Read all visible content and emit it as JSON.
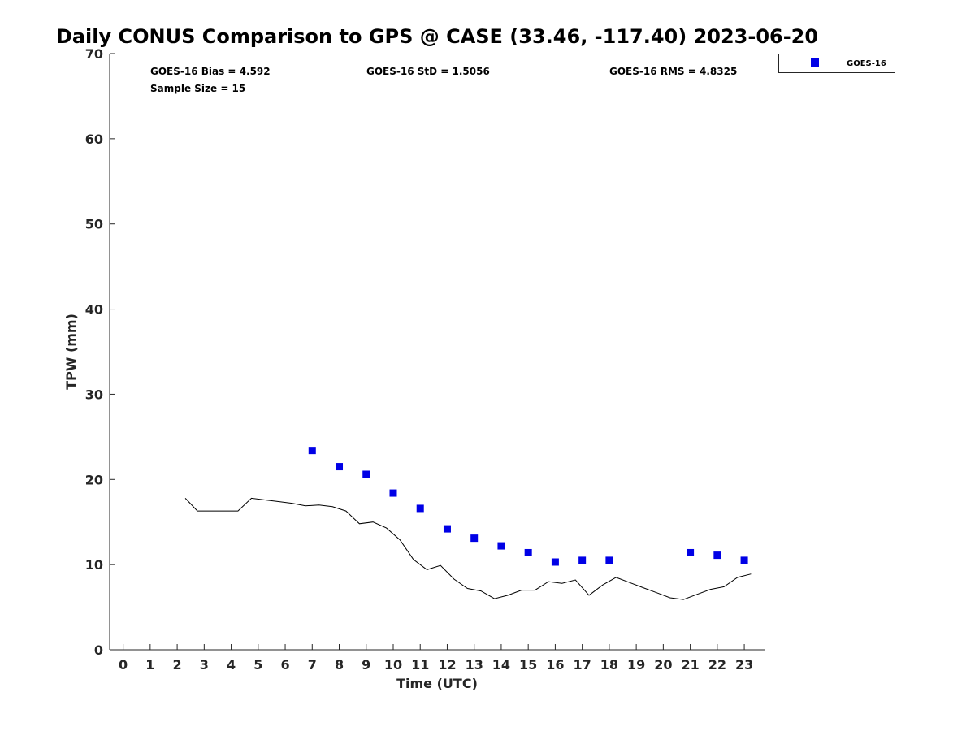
{
  "chart_data": {
    "type": "scatter",
    "title": "Daily CONUS Comparison to GPS @ CASE (33.46, -117.40) 2023-06-20",
    "xlabel": "Time (UTC)",
    "ylabel": "TPW (mm)",
    "xlim": [
      -0.5,
      23.75
    ],
    "ylim": [
      0,
      70
    ],
    "x_ticks": [
      0,
      1,
      2,
      3,
      4,
      5,
      6,
      7,
      8,
      9,
      10,
      11,
      12,
      13,
      14,
      15,
      16,
      17,
      18,
      19,
      20,
      21,
      22,
      23
    ],
    "y_ticks": [
      0,
      10,
      20,
      30,
      40,
      50,
      60,
      70
    ],
    "grid": false,
    "legend_position": "top-right, outside plot",
    "stats": {
      "bias": "GOES-16 Bias = 4.592",
      "std": "GOES-16 StD = 1.5056",
      "rms": "GOES-16 RMS = 4.8325",
      "sample": "Sample Size = 15"
    },
    "series": [
      {
        "name": "GOES-16",
        "kind": "markers",
        "marker": "square",
        "color": "#0000e6",
        "x": [
          7,
          8,
          9,
          10,
          11,
          12,
          13,
          14,
          15,
          16,
          17,
          18,
          21,
          22,
          23
        ],
        "y": [
          23.4,
          21.5,
          20.6,
          18.4,
          16.6,
          14.2,
          13.1,
          12.2,
          11.4,
          10.3,
          10.5,
          10.5,
          11.4,
          11.1,
          10.5
        ]
      },
      {
        "kind": "line",
        "color": "#000000",
        "x": [
          2.3,
          2.75,
          3.25,
          3.75,
          4.25,
          4.75,
          5.25,
          5.75,
          6.25,
          6.75,
          7.25,
          7.75,
          8.25,
          8.75,
          9.25,
          9.75,
          10.25,
          10.75,
          11.25,
          11.75,
          12.25,
          12.75,
          13.25,
          13.75,
          14.25,
          14.75,
          15.25,
          15.75,
          16.25,
          16.75,
          17.25,
          17.75,
          18.25,
          18.75,
          19.25,
          19.75,
          20.25,
          20.75,
          21.25,
          21.75,
          22.25,
          22.75,
          23.25
        ],
        "y": [
          17.8,
          16.3,
          16.3,
          16.3,
          16.3,
          17.8,
          17.6,
          17.4,
          17.2,
          16.9,
          17.0,
          16.8,
          16.3,
          14.8,
          15.0,
          14.3,
          12.9,
          10.6,
          9.4,
          9.9,
          8.3,
          7.2,
          6.9,
          6.0,
          6.4,
          7.0,
          7.0,
          8.0,
          7.8,
          8.2,
          6.4,
          7.6,
          8.5,
          7.9,
          7.3,
          6.7,
          6.1,
          5.9,
          6.5,
          7.1,
          7.4,
          8.5,
          8.9
        ]
      }
    ]
  }
}
